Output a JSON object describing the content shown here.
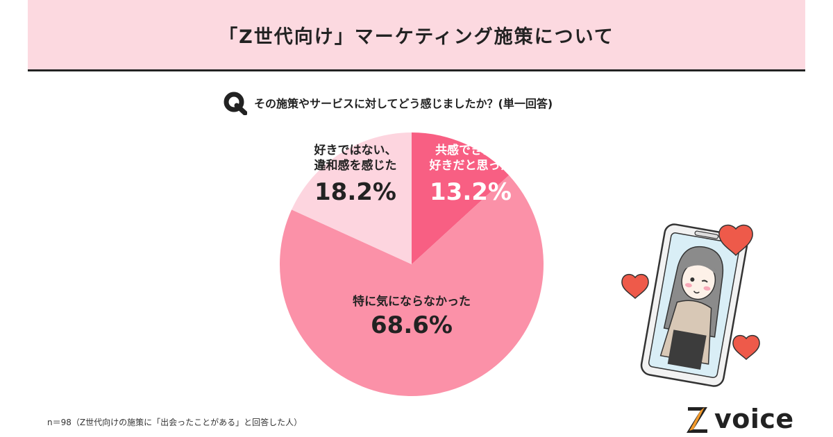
{
  "title": "「Z世代向け」マーケティング施策について",
  "question": {
    "icon": "q-icon",
    "text": "その施策やサービスに対してどう感じましたか？(単一回答)"
  },
  "chart_data": {
    "type": "pie",
    "slices": [
      {
        "label_lines": [
          "共感できた、",
          "好きだと思った"
        ],
        "value": 13.2,
        "value_label": "13.2%",
        "color": "#f85f83",
        "text_color": "#ffffff"
      },
      {
        "label_lines": [
          "特に気にならなかった"
        ],
        "value": 68.6,
        "value_label": "68.6%",
        "color": "#fb91a8",
        "text_color": "#222222"
      },
      {
        "label_lines": [
          "好きではない、",
          "違和感を感じた"
        ],
        "value": 18.2,
        "value_label": "18.2%",
        "color": "#fdd5df",
        "text_color": "#222222"
      }
    ]
  },
  "footnote": "n＝98（Z世代向けの施策に「出会ったことがある」と回答した人）",
  "illustration": {
    "icon": "smartphone-girl-hearts-illustration"
  },
  "brand": {
    "icon": "z-logo-icon",
    "word": "voice",
    "mark_colors": [
      "#222222",
      "#f39a2b"
    ]
  }
}
